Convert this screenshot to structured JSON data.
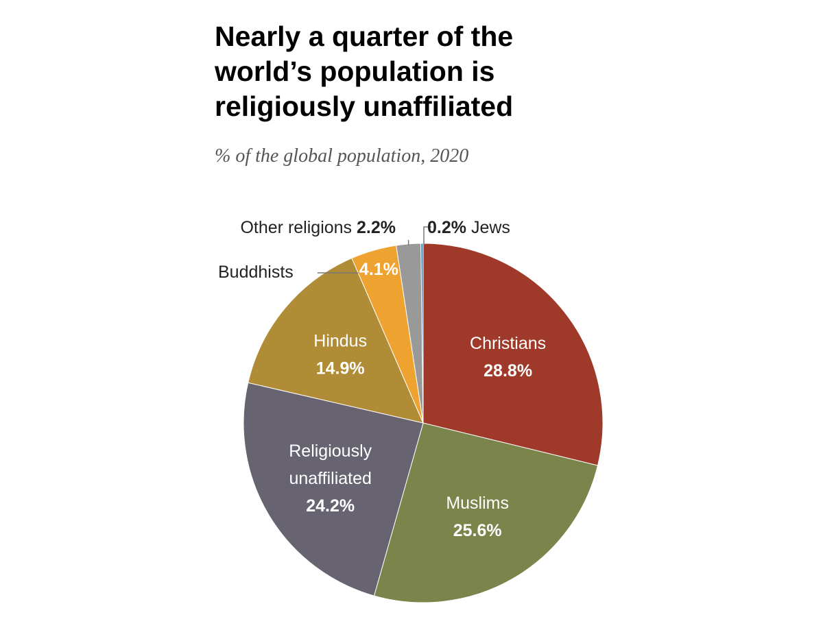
{
  "chart_data": {
    "type": "pie",
    "title": "Nearly a quarter of the world’s population is religiously unaffiliated",
    "subtitle": "% of the global population, 2020",
    "slices": [
      {
        "label": "Christians",
        "value": 28.8,
        "value_label": "28.8%",
        "color": "#9f3a2b"
      },
      {
        "label": "Muslims",
        "value": 25.6,
        "value_label": "25.6%",
        "color": "#7b844a"
      },
      {
        "label": "Religiously unaffiliated",
        "label_lines": [
          "Religiously",
          "unaffiliated"
        ],
        "value": 24.2,
        "value_label": "24.2%",
        "color": "#676370"
      },
      {
        "label": "Hindus",
        "value": 14.9,
        "value_label": "14.9%",
        "color": "#b08c36"
      },
      {
        "label": "Buddhists",
        "value": 4.1,
        "value_label": "4.1%",
        "color": "#eea22f"
      },
      {
        "label": "Other religions",
        "value": 2.2,
        "value_label": "2.2%",
        "color": "#999999"
      },
      {
        "label": "Jews",
        "value": 0.2,
        "value_label": "0.2%",
        "color": "#3b8bbf"
      }
    ]
  }
}
